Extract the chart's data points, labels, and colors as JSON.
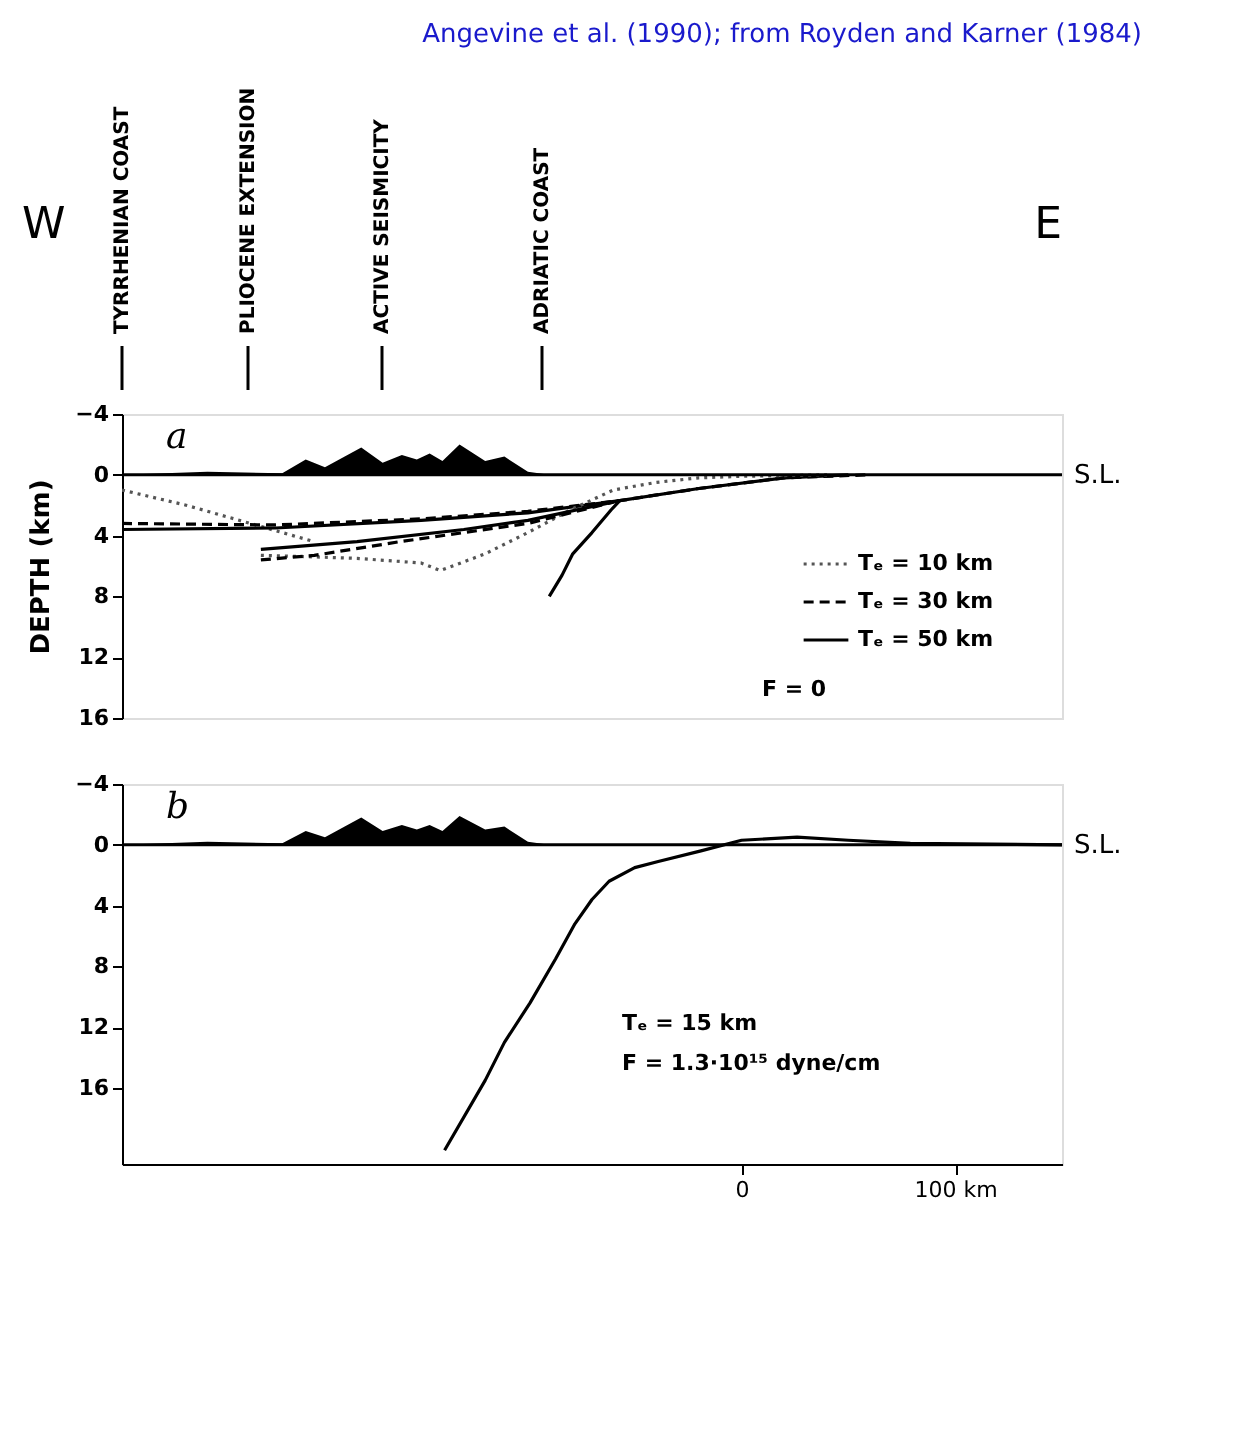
{
  "chart_data": [
    {
      "type": "line",
      "ylabel": "DEPTH (km)",
      "xlim": [
        -290,
        150
      ],
      "ylim": [
        16,
        -4
      ],
      "yticks": [
        -4,
        0,
        4,
        8,
        12,
        16
      ],
      "tick_labels": "y",
      "grid": false,
      "legend": "bottom right",
      "annotations": [
        "Angevine et al. (1990); from Royden and Karner (1984)",
        "W",
        "E",
        "a",
        "F = 0",
        "TYRRHENIAN COAST",
        "PLIOCENE EXTENSION",
        "ACTIVE SEISMICITY",
        "ADRIATIC COAST"
      ],
      "ref_lines": [
        {
          "axis": "y",
          "value": 0,
          "label": "S.L.",
          "color": "#000000",
          "line_style": "solid"
        }
      ],
      "series": [
        {
          "type": "area",
          "color": "#000000",
          "x": [
            -290,
            -250,
            -215,
            -204,
            -195,
            -178,
            -168,
            -159,
            -152,
            -146,
            -140,
            -132,
            -120,
            -111,
            -100,
            -90,
            150
          ],
          "values": [
            0,
            -0.2,
            -0.1,
            -1.0,
            -0.5,
            -1.8,
            -0.8,
            -1.3,
            -1.0,
            -1.4,
            -0.9,
            -2.0,
            -0.9,
            -1.2,
            -0.2,
            0,
            0
          ]
        },
        {
          "name": "Tₑ = 10 km",
          "color": "#555555",
          "line_style": "dotted",
          "x": [
            -290,
            -260,
            -230,
            -210,
            -200
          ],
          "values": [
            1.0,
            2.0,
            3.2,
            4.0,
            4.4
          ]
        },
        {
          "name": "Tₑ = 30 km",
          "color": "#000000",
          "line_style": "dashed",
          "x": [
            -290,
            -218,
            -150,
            -100,
            -57,
            -20,
            20,
            60
          ],
          "values": [
            3.2,
            3.3,
            2.9,
            2.4,
            1.7,
            0.9,
            0.2,
            0
          ]
        },
        {
          "name": "Tₑ = 50 km",
          "color": "#000000",
          "line_style": "solid",
          "x": [
            -290,
            -218,
            -150,
            -100,
            -57,
            -20,
            20,
            50
          ],
          "values": [
            3.6,
            3.5,
            3.0,
            2.5,
            1.7,
            0.9,
            0.2,
            0
          ]
        },
        {
          "color": "#555555",
          "line_style": "dotted",
          "x": [
            -225,
            -200,
            -180,
            -150,
            -141,
            -120,
            -100,
            -80,
            -60,
            -40,
            -20,
            0,
            40
          ],
          "values": [
            5.3,
            5.4,
            5.5,
            5.8,
            6.3,
            5.2,
            3.8,
            2.3,
            1.0,
            0.5,
            0.2,
            0.1,
            0
          ]
        },
        {
          "color": "#000000",
          "line_style": "dashed",
          "x": [
            -225,
            -200,
            -160,
            -130,
            -100,
            -60
          ],
          "values": [
            5.6,
            5.3,
            4.4,
            3.8,
            3.2,
            1.8
          ]
        },
        {
          "color": "#000000",
          "line_style": "solid",
          "x": [
            -225,
            -180,
            -130,
            -100,
            -57
          ],
          "values": [
            4.9,
            4.4,
            3.6,
            3.0,
            1.7
          ]
        },
        {
          "color": "#000000",
          "line_style": "solid",
          "x": [
            -90,
            -84,
            -79,
            -70,
            -61,
            -57
          ],
          "values": [
            8.0,
            6.6,
            5.2,
            3.8,
            2.3,
            1.7
          ]
        }
      ]
    },
    {
      "type": "line",
      "xlim": [
        -290,
        150
      ],
      "ylim": [
        21,
        -4
      ],
      "yticks": [
        -4,
        0,
        4,
        8,
        12,
        16
      ],
      "xticks": [
        {
          "value": 0,
          "label": "0"
        },
        {
          "value": 100,
          "label": "100 km"
        }
      ],
      "grid": false,
      "annotations": [
        "b",
        "Tₑ = 15 km",
        "F = 1.3·10¹⁵ dyne/cm"
      ],
      "ref_lines": [
        {
          "axis": "y",
          "value": 0,
          "label": "S.L.",
          "color": "#000000",
          "line_style": "solid"
        }
      ],
      "series": [
        {
          "type": "area",
          "color": "#000000",
          "x": [
            -290,
            -250,
            -215,
            -204,
            -195,
            -178,
            -168,
            -159,
            -152,
            -146,
            -140,
            -132,
            -120,
            -111,
            -100,
            -90,
            150
          ],
          "values": [
            0,
            -0.2,
            -0.1,
            -0.9,
            -0.5,
            -1.8,
            -0.9,
            -1.3,
            -1.0,
            -1.3,
            -0.9,
            -1.9,
            -1.0,
            -1.2,
            -0.2,
            0,
            0
          ]
        },
        {
          "color": "#000000",
          "line_style": "solid",
          "x": [
            -139,
            -120,
            -111,
            -99,
            -87,
            -78,
            -70,
            -62,
            -50,
            -39,
            -19,
            0,
            26,
            50,
            79,
            150
          ],
          "values": [
            20.1,
            15.5,
            13.0,
            10.4,
            7.5,
            5.2,
            3.6,
            2.4,
            1.5,
            1.1,
            0.4,
            -0.3,
            -0.5,
            -0.3,
            -0.1,
            0
          ]
        }
      ]
    }
  ]
}
